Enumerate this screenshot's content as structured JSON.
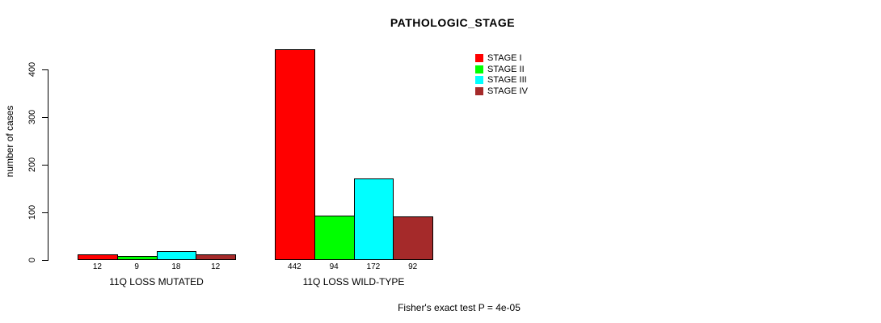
{
  "chart_data": {
    "type": "bar",
    "title": "PATHOLOGIC_STAGE",
    "ylabel": "number of cases",
    "ylim": [
      0,
      400
    ],
    "yticks": [
      0,
      100,
      200,
      300,
      400
    ],
    "grid": false,
    "legend_position": "top-right",
    "categories": [
      "11Q LOSS MUTATED",
      "11Q LOSS WILD-TYPE"
    ],
    "series": [
      {
        "name": "STAGE I",
        "color": "#ff0000",
        "values": [
          12,
          442
        ]
      },
      {
        "name": "STAGE II",
        "color": "#00ff00",
        "values": [
          9,
          94
        ]
      },
      {
        "name": "STAGE III",
        "color": "#00ffff",
        "values": [
          18,
          172
        ]
      },
      {
        "name": "STAGE IV",
        "color": "#a52a2a",
        "values": [
          12,
          92
        ]
      }
    ],
    "footnote": "Fisher's exact test P = 4e-05"
  }
}
